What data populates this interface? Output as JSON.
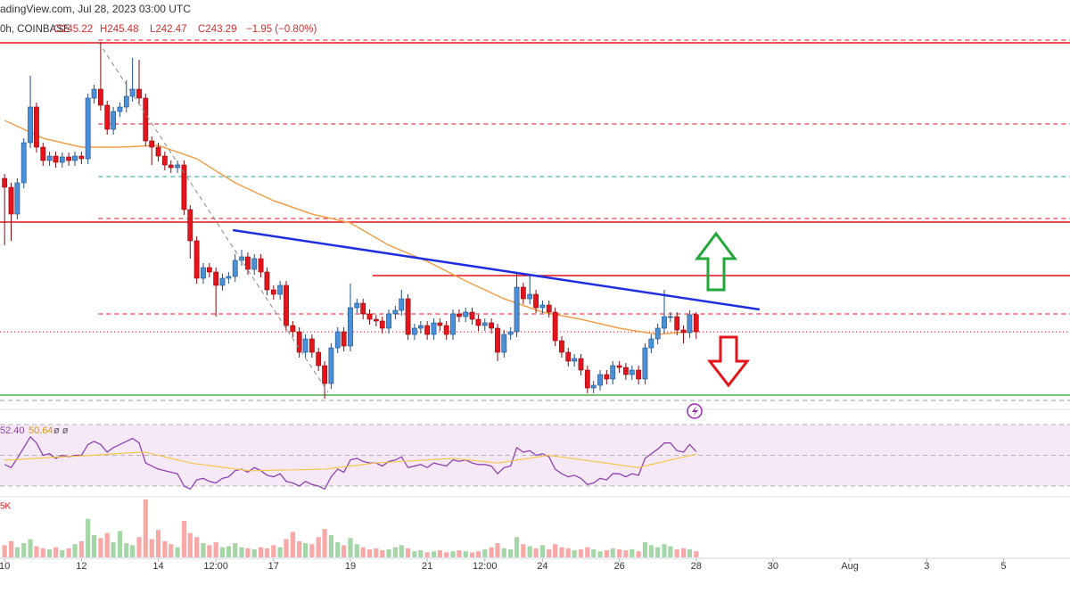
{
  "chart_data": {
    "type": "candlestick",
    "header": {
      "source": "adingView.com, Jul 28, 2023 03:00 UTC",
      "symbol": "0h, COINBASE",
      "open": "O245.22",
      "high": "H245.48",
      "low": "L242.47",
      "close": "C243.29",
      "change": "−1.95 (−0.80%)"
    },
    "up_color": "#4a8fd8",
    "down_color": "#e3141c",
    "xlim": [
      9.88,
      37.73
    ],
    "ylim": [
      235,
      277
    ],
    "xticks": [
      10,
      12,
      14,
      {
        "value": 15.5,
        "label": "12:00"
      },
      17,
      19,
      21,
      {
        "value": 22.5,
        "label": "12:00"
      },
      24,
      26,
      28,
      30,
      {
        "value": 32,
        "label": "Aug"
      },
      {
        "value": 34,
        "label": "3"
      },
      {
        "value": 36,
        "label": "5"
      }
    ],
    "x": [
      10,
      10.17,
      10.33,
      10.5,
      10.67,
      10.83,
      11,
      11.17,
      11.33,
      11.5,
      11.67,
      11.83,
      12,
      12.17,
      12.33,
      12.5,
      12.67,
      12.83,
      13,
      13.17,
      13.33,
      13.5,
      13.67,
      13.83,
      14,
      14.17,
      14.33,
      14.5,
      14.67,
      14.83,
      15,
      15.17,
      15.33,
      15.5,
      15.67,
      15.83,
      16,
      16.17,
      16.33,
      16.5,
      16.67,
      16.83,
      17,
      17.17,
      17.33,
      17.5,
      17.67,
      17.83,
      18,
      18.17,
      18.33,
      18.5,
      18.67,
      18.83,
      19,
      19.17,
      19.33,
      19.5,
      19.67,
      19.83,
      20,
      20.17,
      20.33,
      20.5,
      20.67,
      20.83,
      21,
      21.17,
      21.33,
      21.5,
      21.67,
      21.83,
      22,
      22.17,
      22.33,
      22.5,
      22.67,
      22.83,
      23,
      23.17,
      23.33,
      23.5,
      23.67,
      23.83,
      24,
      24.17,
      24.33,
      24.5,
      24.67,
      24.83,
      25,
      25.17,
      25.33,
      25.5,
      25.67,
      25.83,
      26,
      26.17,
      26.33,
      26.5,
      26.67,
      26.83,
      27,
      27.17,
      27.33,
      27.5,
      27.67,
      27.83,
      28
    ],
    "open": [
      260.5,
      259.5,
      256.5,
      260.0,
      264.5,
      268.5,
      264.0,
      262.5,
      263.0,
      262.3,
      262.9,
      262.5,
      263.0,
      262.7,
      269.5,
      270.5,
      268.7,
      266.0,
      268.0,
      268.5,
      269.7,
      270.5,
      269.5,
      264.7,
      264.0,
      263.0,
      262.0,
      261.7,
      262.0,
      257.0,
      253.5,
      249.3,
      250.5,
      250.0,
      248.5,
      249.3,
      249.5,
      251.3,
      251.7,
      250.3,
      251.5,
      250.0,
      248.0,
      247.5,
      248.5,
      244.0,
      243.3,
      241.0,
      242.5,
      241.0,
      239.5,
      237.5,
      241.5,
      243.3,
      241.7,
      246.0,
      246.5,
      245.3,
      244.7,
      244.5,
      243.7,
      245.3,
      245.7,
      247.0,
      243.0,
      243.7,
      244.0,
      243.0,
      244.3,
      244.0,
      243.0,
      245.3,
      245.0,
      245.5,
      244.7,
      244.0,
      244.3,
      243.7,
      241.0,
      243.0,
      243.3,
      248.3,
      247.0,
      247.5,
      246.0,
      246.3,
      245.5,
      242.3,
      241.0,
      240.0,
      240.3,
      239.0,
      237.0,
      237.3,
      238.5,
      238.0,
      239.5,
      239.3,
      238.5,
      239.0,
      238.0,
      241.5,
      242.5,
      243.7,
      245.0,
      245.0,
      243.5,
      243.2,
      245.22
    ],
    "high": [
      261.0,
      260.0,
      260.5,
      265.0,
      272.0,
      269.0,
      264.5,
      263.5,
      263.5,
      263.4,
      263.4,
      263.5,
      263.5,
      270.0,
      271.0,
      275.8,
      269.2,
      268.5,
      269.0,
      271.5,
      274.0,
      273.8,
      270.0,
      265.2,
      264.5,
      263.5,
      262.5,
      262.5,
      262.5,
      257.5,
      254.0,
      251.0,
      251.0,
      250.5,
      249.8,
      250.0,
      252.0,
      252.5,
      252.2,
      252.0,
      252.0,
      250.5,
      248.5,
      249.0,
      249.0,
      244.5,
      243.8,
      243.0,
      243.0,
      241.5,
      240.0,
      242.0,
      243.8,
      243.8,
      248.7,
      247.0,
      247.0,
      245.8,
      245.2,
      245.0,
      245.8,
      246.2,
      248.0,
      247.5,
      244.2,
      244.5,
      244.5,
      244.8,
      244.8,
      244.5,
      245.8,
      245.8,
      246.0,
      246.0,
      245.2,
      244.8,
      244.8,
      244.2,
      243.5,
      243.8,
      250.0,
      248.8,
      249.8,
      248.0,
      246.8,
      246.8,
      246.0,
      242.8,
      241.5,
      240.8,
      240.8,
      239.5,
      237.8,
      239.0,
      239.0,
      240.0,
      240.0,
      239.8,
      239.5,
      239.5,
      242.0,
      243.0,
      244.2,
      248.0,
      245.5,
      245.5,
      244.0,
      245.7,
      245.48
    ],
    "low": [
      253.0,
      253.5,
      255.9,
      259.4,
      263.9,
      263.4,
      261.9,
      261.9,
      261.7,
      261.7,
      261.9,
      261.9,
      262.1,
      262.1,
      268.9,
      268.1,
      265.4,
      265.4,
      267.4,
      267.9,
      269.1,
      268.9,
      264.1,
      262.0,
      262.4,
      261.4,
      261.1,
      261.1,
      256.4,
      251.5,
      248.7,
      248.7,
      249.4,
      245.0,
      247.9,
      248.7,
      248.9,
      250.7,
      249.7,
      249.7,
      249.4,
      247.4,
      246.9,
      246.9,
      243.4,
      242.7,
      240.4,
      240.4,
      240.4,
      238.9,
      235.8,
      236.9,
      240.9,
      241.1,
      241.1,
      245.4,
      244.7,
      244.1,
      243.9,
      243.1,
      243.1,
      244.7,
      245.1,
      242.4,
      242.4,
      243.1,
      242.4,
      242.4,
      243.4,
      242.4,
      242.4,
      244.4,
      244.4,
      244.1,
      243.4,
      243.4,
      243.1,
      240.0,
      240.4,
      242.4,
      242.7,
      246.4,
      246.4,
      245.4,
      245.4,
      244.9,
      241.7,
      240.4,
      239.4,
      239.4,
      238.4,
      236.4,
      236.4,
      236.7,
      237.4,
      237.4,
      238.7,
      237.9,
      237.9,
      237.4,
      237.4,
      240.9,
      241.9,
      243.1,
      244.4,
      242.9,
      242.0,
      242.6,
      242.47
    ],
    "close": [
      259.5,
      256.5,
      260.0,
      264.5,
      268.5,
      264.0,
      262.5,
      263.0,
      262.3,
      262.9,
      262.5,
      263.0,
      262.7,
      269.5,
      270.5,
      268.7,
      266.0,
      268.0,
      268.5,
      269.7,
      270.5,
      269.5,
      264.7,
      264.0,
      263.0,
      262.0,
      261.7,
      262.0,
      257.0,
      253.5,
      249.3,
      250.5,
      250.0,
      248.5,
      249.3,
      249.5,
      251.3,
      251.7,
      250.3,
      251.5,
      250.0,
      248.0,
      247.5,
      248.5,
      244.0,
      243.3,
      241.0,
      242.5,
      241.0,
      239.5,
      237.5,
      241.5,
      243.3,
      241.7,
      246.0,
      246.5,
      245.3,
      244.7,
      244.5,
      243.7,
      245.3,
      245.7,
      247.0,
      243.0,
      243.7,
      244.0,
      243.0,
      244.3,
      244.0,
      243.0,
      245.3,
      245.0,
      245.5,
      244.7,
      244.0,
      244.3,
      243.7,
      241.0,
      243.0,
      243.3,
      248.3,
      247.0,
      247.5,
      246.0,
      246.3,
      245.5,
      242.3,
      241.0,
      240.0,
      240.3,
      239.0,
      237.0,
      237.3,
      238.5,
      238.0,
      239.5,
      239.3,
      238.5,
      239.0,
      238.0,
      241.5,
      242.5,
      243.7,
      245.0,
      245.0,
      243.5,
      243.2,
      245.2,
      243.29
    ],
    "ma": {
      "color": "#f0a04b",
      "x": [
        10,
        11,
        12,
        13,
        14,
        15,
        16,
        17,
        18,
        19,
        20,
        21,
        22,
        23,
        24,
        25,
        26,
        27,
        28
      ],
      "values": [
        267,
        265,
        264,
        264,
        264.2,
        262.7,
        260,
        258,
        256.5,
        255.5,
        253,
        251.2,
        249,
        247,
        245.5,
        244.7,
        243.7,
        243,
        243.4
      ]
    },
    "levels": [
      {
        "value": 275.7,
        "color": "#e3141c",
        "style": "solid"
      },
      {
        "value": 276.0,
        "color": "#e3141c",
        "style": "dashed",
        "from": 12.44
      },
      {
        "value": 266.6,
        "color": "#e3141c",
        "style": "dashed",
        "from": 12.44
      },
      {
        "value": 260.7,
        "color": "#26a69a",
        "style": "dashed",
        "from": 12.44
      },
      {
        "value": 256.0,
        "color": "#e3141c",
        "style": "dashed",
        "from": 12.44
      },
      {
        "value": 255.6,
        "color": "#e3141c",
        "style": "solid"
      },
      {
        "value": 249.6,
        "color": "#e3141c",
        "style": "solid",
        "from": 19.58
      },
      {
        "value": 245.3,
        "color": "#e3141c",
        "style": "dashed",
        "from": 12.44
      },
      {
        "value": 243.29,
        "color": "#e3141c",
        "style": "dotted"
      },
      {
        "value": 236.2,
        "color": "#4caf50",
        "style": "solid"
      },
      {
        "value": 235.6,
        "color": "#9e9e9e",
        "style": "dashed"
      }
    ],
    "trendlines": [
      {
        "x": [
          15.94,
          29.65
        ],
        "y": [
          254.7,
          245.8
        ],
        "color": "#1f2fe0",
        "style": "solid"
      },
      {
        "x": [
          12.44,
          18.42
        ],
        "y": [
          275.8,
          236.5
        ],
        "color": "#8a8a8a",
        "style": "dashed"
      }
    ],
    "rsi": {
      "ylim": [
        24.2,
        78.1
      ],
      "band": [
        30,
        70
      ],
      "ticks": [
        30,
        50,
        70
      ],
      "legend": [
        "52.40",
        "50.64",
        "ø ø"
      ],
      "series": [
        {
          "color": "#8e44ad",
          "values": [
            44,
            42,
            48,
            55,
            62,
            58,
            50,
            51,
            48,
            50,
            49,
            50,
            50,
            57,
            59,
            57,
            52,
            55,
            57,
            59,
            61,
            58,
            45,
            43,
            41,
            40,
            39,
            38,
            30,
            28,
            34,
            35,
            33,
            32,
            35,
            36,
            40,
            41,
            39,
            42,
            40,
            37,
            36,
            38,
            33,
            32,
            30,
            33,
            31,
            30,
            28,
            36,
            41,
            39,
            47,
            48,
            46,
            45,
            45,
            43,
            46,
            47,
            49,
            42,
            43,
            44,
            42,
            45,
            44,
            43,
            47,
            46,
            47,
            45,
            44,
            44,
            43,
            38,
            42,
            43,
            55,
            52,
            53,
            50,
            51,
            49,
            41,
            38,
            36,
            37,
            35,
            31,
            32,
            35,
            34,
            38,
            38,
            36,
            38,
            37,
            48,
            51,
            54,
            58,
            58,
            53,
            52,
            57,
            52.4
          ]
        },
        {
          "color": "#f5c542",
          "values": [
            47,
            47,
            47.2,
            47.5,
            47.8,
            48,
            48.3,
            48.6,
            48.8,
            49,
            49.2,
            49.4,
            49.6,
            49.8,
            50,
            50.3,
            50.6,
            50.9,
            51.2,
            51.5,
            51.7,
            51.9,
            52,
            51,
            50,
            49,
            48,
            47,
            46,
            45,
            44.4,
            43.9,
            43.3,
            42.8,
            42.2,
            41.7,
            41.1,
            40.6,
            40,
            40,
            40.1,
            40.2,
            40.3,
            40.4,
            40.5,
            40.5,
            40.6,
            40.7,
            40.8,
            40.9,
            41,
            41.5,
            42,
            42.5,
            43,
            43.5,
            44,
            44.5,
            45,
            45.3,
            45.5,
            45.8,
            46,
            46.3,
            46.5,
            46.8,
            47,
            47.3,
            47.5,
            47.8,
            48,
            47.6,
            47.1,
            46.7,
            46.3,
            45.9,
            45.4,
            45,
            45.6,
            46.3,
            46.9,
            47.5,
            48.1,
            48.8,
            49.4,
            50,
            49.4,
            48.9,
            48.3,
            47.7,
            47.1,
            46.6,
            46,
            45.4,
            44.9,
            44.3,
            43.7,
            43.1,
            42.6,
            42,
            43,
            44,
            45,
            46,
            47,
            47.9,
            48.8,
            49.7,
            50.64
          ]
        }
      ]
    },
    "volume": {
      "ylim": [
        0,
        5.88
      ],
      "yticks": [
        {
          "value": 5,
          "label": "5K"
        }
      ],
      "up_color": "#a5d6a7",
      "down_color": "#f7a9a7",
      "values": [
        1.2,
        1.6,
        1.0,
        1.4,
        1.8,
        1.1,
        0.9,
        0.8,
        1.0,
        0.7,
        0.9,
        1.3,
        1.6,
        3.8,
        2.2,
        1.9,
        2.4,
        1.5,
        2.6,
        1.4,
        1.2,
        2.0,
        5.7,
        1.8,
        2.7,
        1.6,
        1.3,
        1.0,
        3.6,
        2.4,
        2.0,
        1.4,
        1.2,
        1.5,
        1.0,
        1.1,
        1.4,
        1.0,
        0.9,
        0.8,
        1.0,
        0.9,
        1.2,
        1.0,
        1.8,
        2.5,
        1.6,
        1.4,
        1.3,
        2.0,
        2.8,
        2.2,
        1.5,
        1.2,
        1.9,
        1.3,
        1.0,
        0.8,
        0.9,
        0.7,
        0.8,
        1.0,
        1.2,
        0.9,
        0.6,
        0.7,
        0.5,
        0.6,
        0.7,
        0.5,
        0.6,
        0.7,
        0.6,
        0.5,
        0.6,
        0.8,
        1.0,
        1.4,
        0.9,
        0.8,
        2.0,
        1.3,
        1.1,
        0.9,
        1.2,
        0.8,
        1.3,
        1.0,
        0.9,
        0.7,
        0.8,
        1.0,
        0.8,
        0.6,
        0.7,
        0.9,
        0.8,
        0.7,
        0.8,
        0.6,
        1.5,
        1.2,
        1.0,
        1.3,
        1.1,
        0.8,
        0.9,
        0.8,
        0.6
      ]
    }
  }
}
